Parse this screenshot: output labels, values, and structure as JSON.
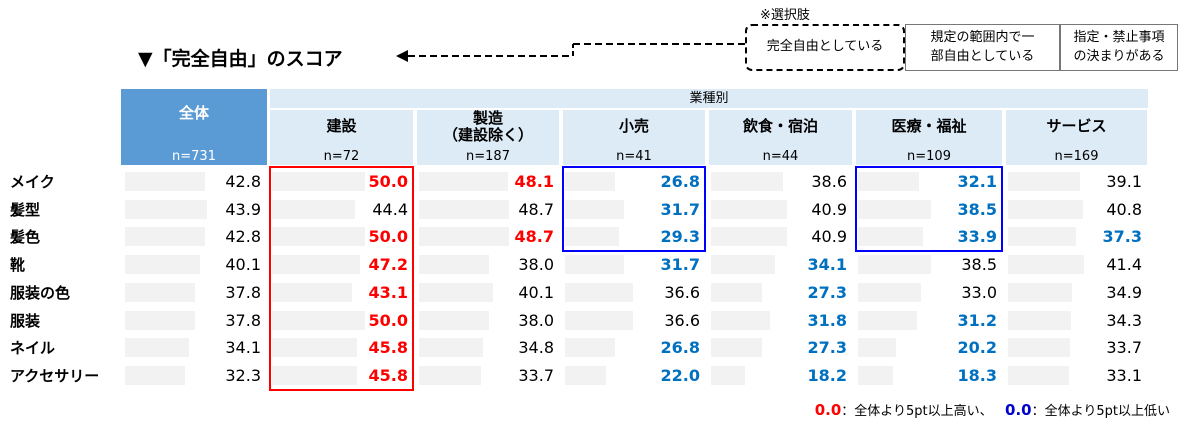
{
  "title": "▼「完全自由」のスコア",
  "choices": {
    "label": "※選択肢",
    "items": [
      "完全自由としている",
      "規定の範囲内で一\n部自由としている",
      "指定・禁止事項\nの決まりがある"
    ]
  },
  "header_group": "業種別",
  "legend": {
    "hi_mark": "0.0",
    "hi_text": "：全体より5pt以上高い、",
    "lo_mark": "0.0",
    "lo_text": "：全体より5pt以上低い"
  },
  "colors": {
    "header_total": "#5b9bd5",
    "header": "#ddebf7",
    "high": "#ff0000",
    "low": "#0070c0",
    "bar": "#f2f2f2"
  },
  "chart_data": {
    "type": "table",
    "columns": [
      {
        "name": "全体",
        "n": "n=731"
      },
      {
        "name": "建設",
        "n": "n=72"
      },
      {
        "name": "製造\n（建設除く）",
        "n": "n=187"
      },
      {
        "name": "小売",
        "n": "n=41"
      },
      {
        "name": "飲食・宿泊",
        "n": "n=44"
      },
      {
        "name": "医療・福祉",
        "n": "n=109"
      },
      {
        "name": "サービス",
        "n": "n=169"
      }
    ],
    "rows": [
      {
        "label": "メイク",
        "values": [
          "42.8",
          "50.0",
          "48.1",
          "26.8",
          "38.6",
          "32.1",
          "39.1"
        ],
        "flags": [
          "",
          "hi",
          "hi",
          "lo",
          "",
          "lo",
          ""
        ]
      },
      {
        "label": "髪型",
        "values": [
          "43.9",
          "44.4",
          "48.7",
          "31.7",
          "40.9",
          "38.5",
          "40.8"
        ],
        "flags": [
          "",
          "",
          "",
          "lo",
          "",
          "lo",
          ""
        ]
      },
      {
        "label": "髪色",
        "values": [
          "42.8",
          "50.0",
          "48.7",
          "29.3",
          "40.9",
          "33.9",
          "37.3"
        ],
        "flags": [
          "",
          "hi",
          "hi",
          "lo",
          "",
          "lo",
          "lo"
        ]
      },
      {
        "label": "靴",
        "values": [
          "40.1",
          "47.2",
          "38.0",
          "31.7",
          "34.1",
          "38.5",
          "41.4"
        ],
        "flags": [
          "",
          "hi",
          "",
          "lo",
          "lo",
          "",
          ""
        ]
      },
      {
        "label": "服装の色",
        "values": [
          "37.8",
          "43.1",
          "40.1",
          "36.6",
          "27.3",
          "33.0",
          "34.9"
        ],
        "flags": [
          "",
          "hi",
          "",
          "",
          "lo",
          "",
          ""
        ]
      },
      {
        "label": "服装",
        "values": [
          "37.8",
          "50.0",
          "38.0",
          "36.6",
          "31.8",
          "31.2",
          "34.3"
        ],
        "flags": [
          "",
          "hi",
          "",
          "",
          "lo",
          "lo",
          ""
        ]
      },
      {
        "label": "ネイル",
        "values": [
          "34.1",
          "45.8",
          "34.8",
          "26.8",
          "27.3",
          "20.2",
          "33.7"
        ],
        "flags": [
          "",
          "hi",
          "",
          "lo",
          "lo",
          "lo",
          ""
        ]
      },
      {
        "label": "アクセサリー",
        "values": [
          "32.3",
          "45.8",
          "33.7",
          "22.0",
          "18.2",
          "18.3",
          "33.1"
        ],
        "flags": [
          "",
          "hi",
          "",
          "lo",
          "lo",
          "lo",
          ""
        ]
      }
    ],
    "bar_max": 100
  }
}
